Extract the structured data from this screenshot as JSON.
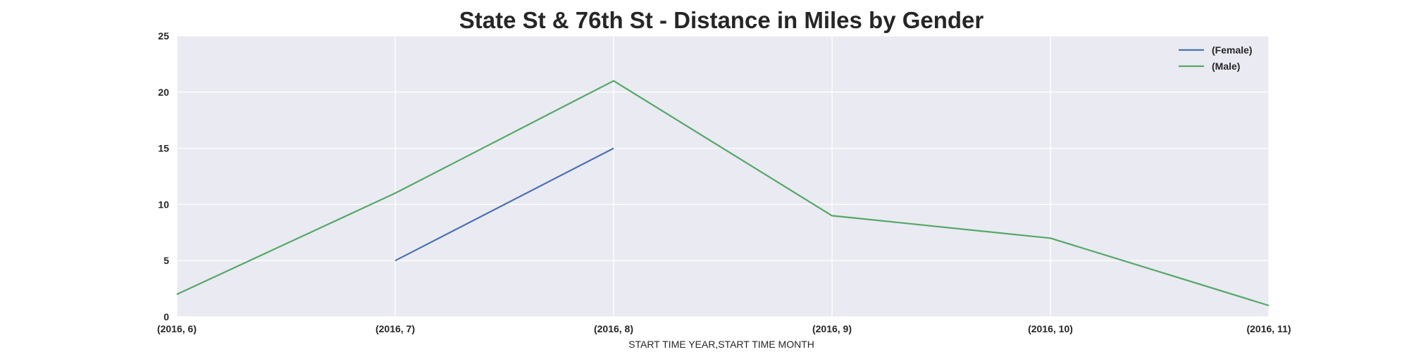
{
  "chart_data": {
    "type": "line",
    "title": "State St & 76th St - Distance in Miles by Gender",
    "xlabel": "START TIME YEAR,START TIME MONTH",
    "ylabel": "",
    "categories": [
      "(2016, 6)",
      "(2016, 7)",
      "(2016, 8)",
      "(2016, 9)",
      "(2016, 10)",
      "(2016, 11)"
    ],
    "ylim": [
      0,
      25
    ],
    "yticks": [
      0,
      5,
      10,
      15,
      20,
      25
    ],
    "grid": true,
    "legend_position": "top-right",
    "series": [
      {
        "name": "(Female)",
        "color": "#4c72b0",
        "values": [
          null,
          5,
          15,
          null,
          null,
          null
        ]
      },
      {
        "name": "(Male)",
        "color": "#55a868",
        "values": [
          2,
          11,
          21,
          9,
          7,
          1
        ]
      }
    ]
  },
  "colors": {
    "plot_background": "#eaeaf2",
    "grid": "#ffffff",
    "text": "#262626"
  }
}
